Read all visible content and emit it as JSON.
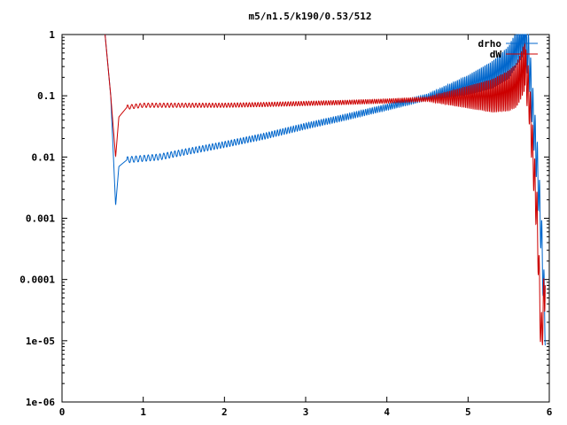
{
  "chart_data": {
    "type": "line",
    "title": "m5/n1.5/k190/0.53/512",
    "xlabel": "",
    "ylabel": "",
    "xlim": [
      0,
      6
    ],
    "ylim": [
      1e-06,
      1
    ],
    "yscale": "log",
    "grid": false,
    "legend_position": "top-right",
    "x_ticks": [
      "0",
      "1",
      "2",
      "3",
      "4",
      "5",
      "6"
    ],
    "y_ticks": [
      "1",
      "0.1",
      "0.01",
      "0.001",
      "0.0001",
      "1e-05",
      "1e-06"
    ],
    "series": [
      {
        "name": "drho",
        "color": "#0066cc",
        "x": [
          0.53,
          0.6,
          0.66,
          0.7,
          0.8,
          1.0,
          1.2,
          1.5,
          2.0,
          2.5,
          3.0,
          3.5,
          4.0,
          4.5,
          5.0,
          5.3,
          5.5,
          5.6,
          5.7,
          5.75,
          5.8,
          5.85,
          5.9,
          5.95
        ],
        "y": [
          1.0,
          0.1,
          0.0016,
          0.007,
          0.009,
          0.0095,
          0.01,
          0.012,
          0.016,
          0.022,
          0.032,
          0.045,
          0.065,
          0.095,
          0.15,
          0.22,
          0.35,
          0.6,
          1.0,
          0.4,
          0.05,
          0.008,
          0.0006,
          2e-05
        ]
      },
      {
        "name": "dW",
        "color": "#cc0000",
        "x": [
          0.53,
          0.6,
          0.66,
          0.7,
          0.8,
          1.0,
          1.2,
          1.5,
          2.0,
          2.5,
          3.0,
          3.5,
          4.0,
          4.5,
          5.0,
          5.3,
          5.5,
          5.6,
          5.7,
          5.75,
          5.8,
          5.85,
          5.9,
          5.95
        ],
        "y": [
          1.0,
          0.1,
          0.01,
          0.045,
          0.065,
          0.07,
          0.07,
          0.07,
          0.07,
          0.072,
          0.075,
          0.078,
          0.082,
          0.088,
          0.095,
          0.1,
          0.12,
          0.15,
          0.3,
          0.1,
          0.01,
          0.001,
          1e-05,
          0.0001
        ]
      }
    ]
  }
}
